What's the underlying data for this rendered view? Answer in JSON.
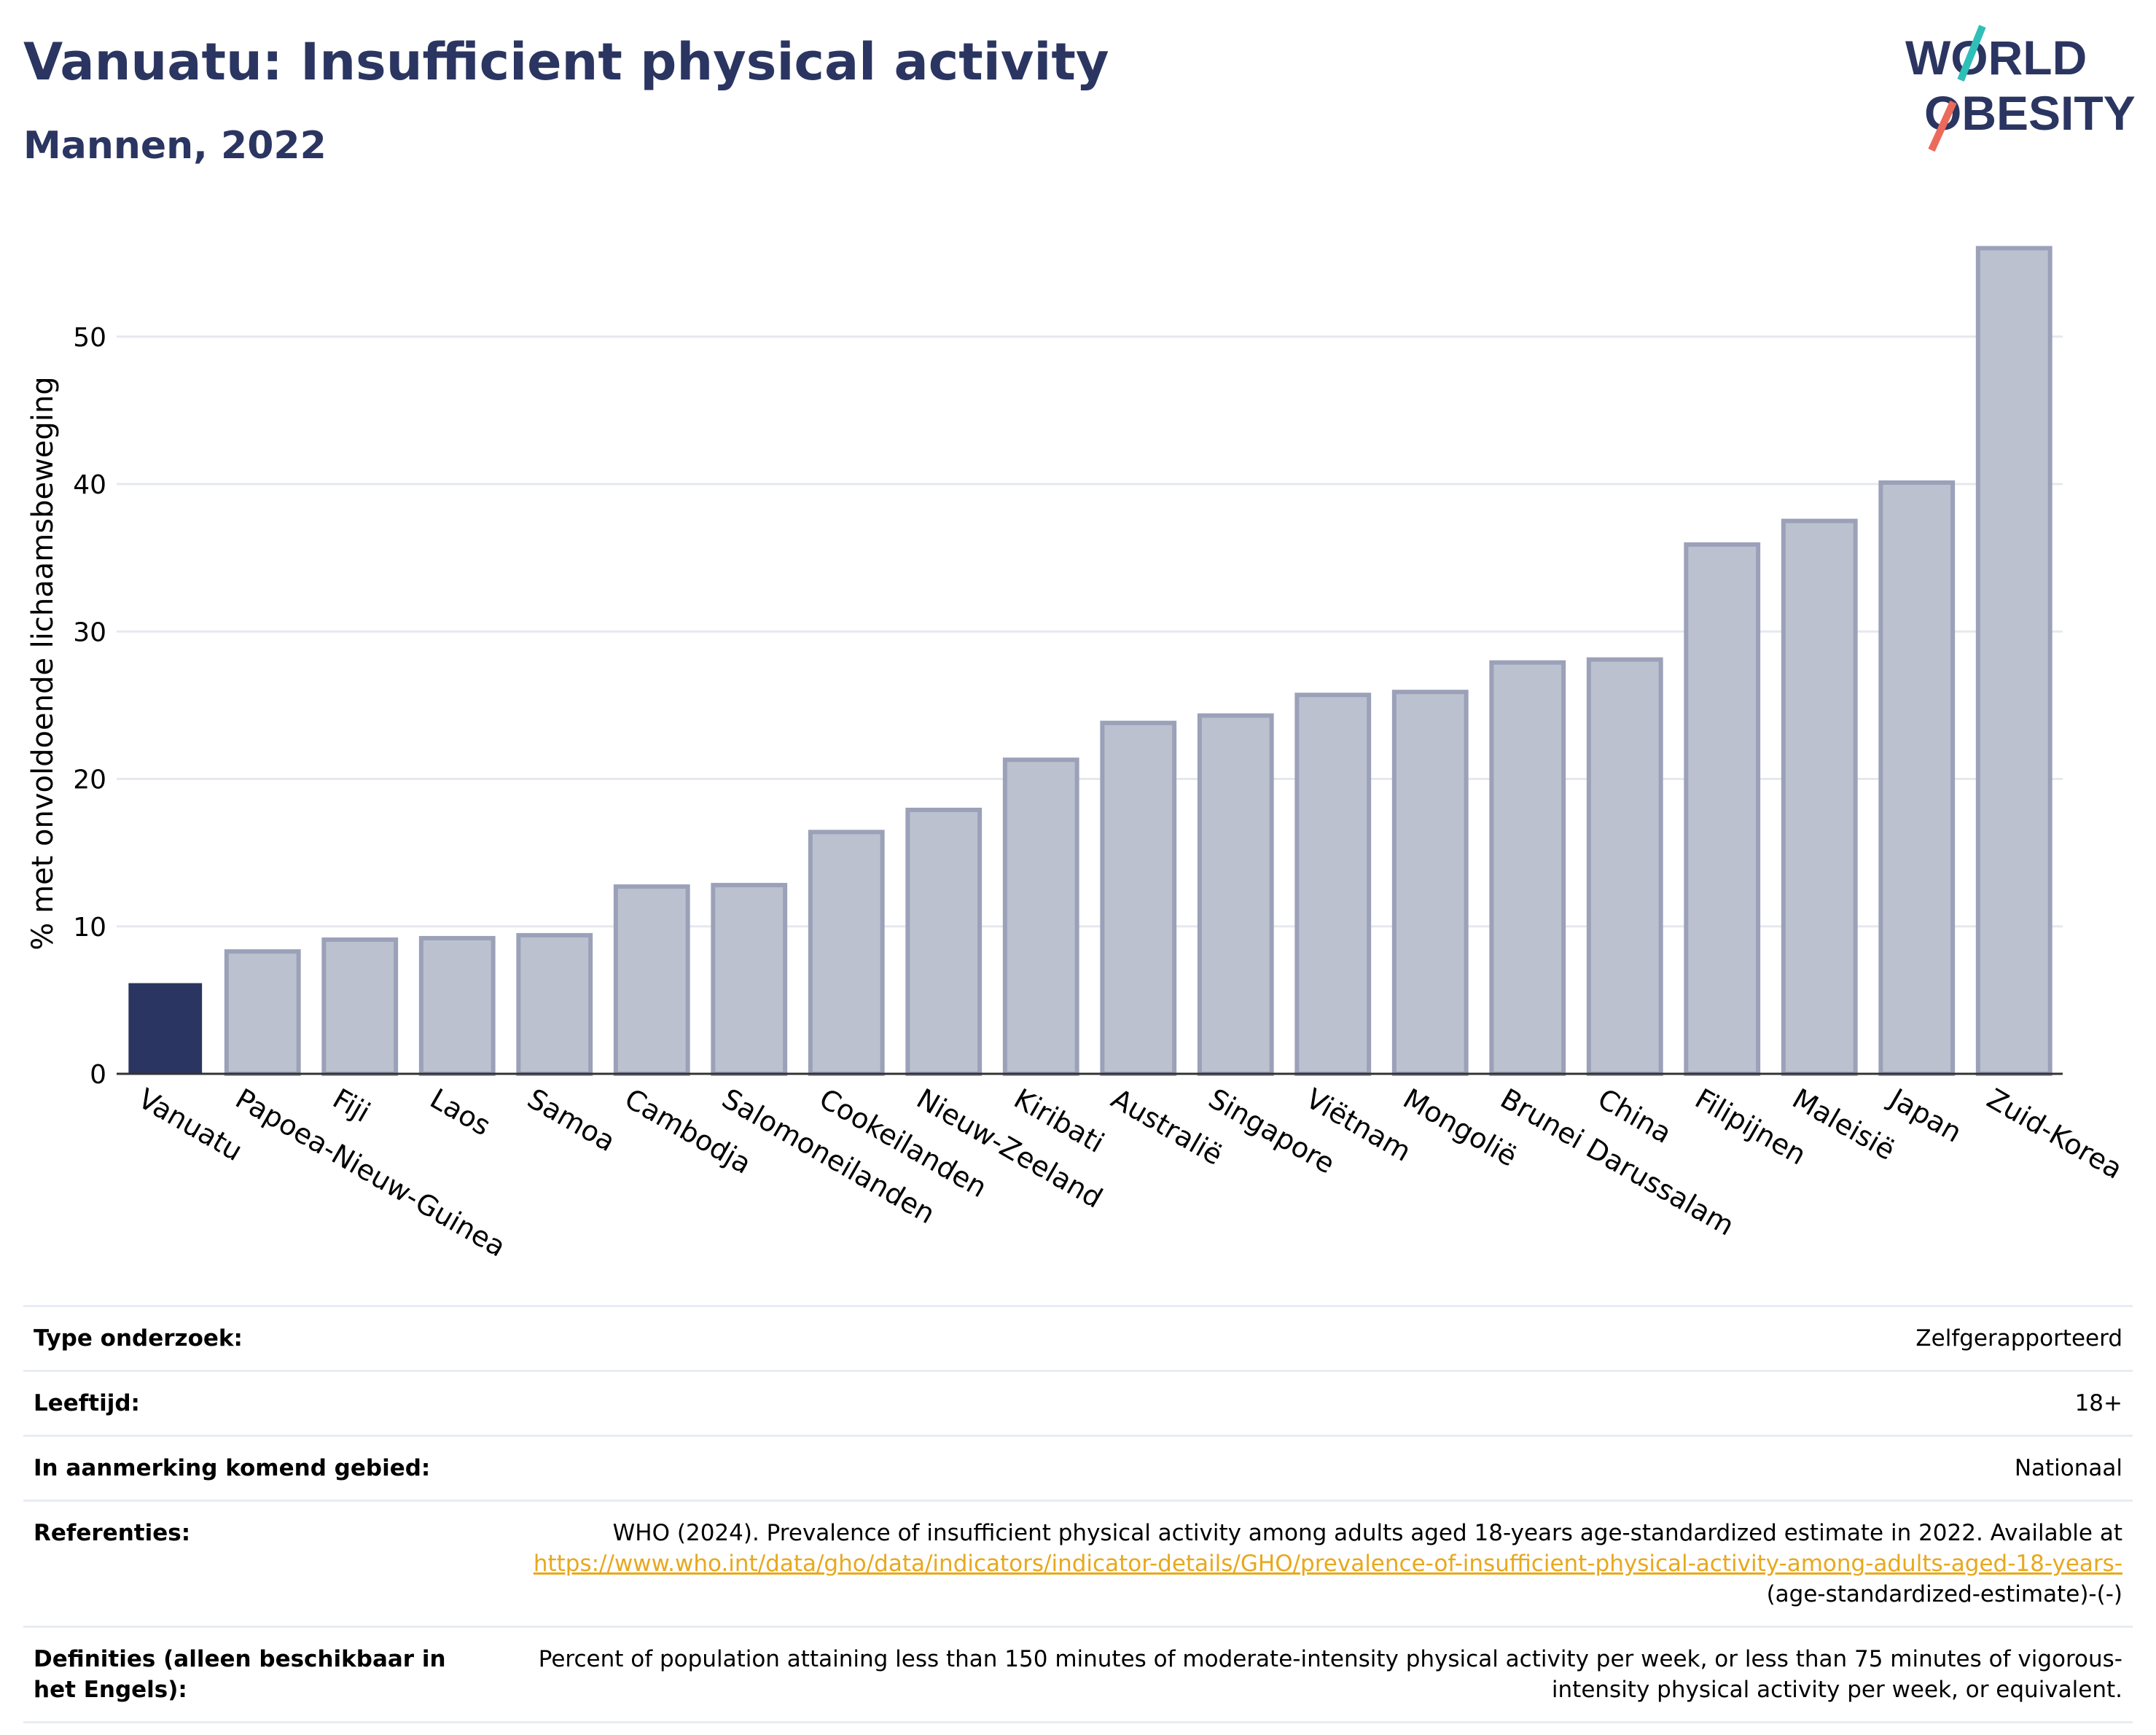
{
  "header": {
    "title": "Vanuatu: Insufficient physical activity",
    "subtitle": "Mannen, 2022"
  },
  "logo": {
    "line1": "WORLD",
    "line2": "OBESITY"
  },
  "colors": {
    "highlight": "#2b3561",
    "bar": "#bcc1d0",
    "bar_edge": "#9aa1b8",
    "axis": "#333333",
    "grid": "#e6e8ef"
  },
  "chart_data": {
    "type": "bar",
    "title": "",
    "xlabel": "",
    "ylabel": "% met onvoldoende lichaamsbeweging",
    "ylim": [
      0,
      58
    ],
    "yticks": [
      0,
      10,
      20,
      30,
      40,
      50
    ],
    "grid": true,
    "highlight": "Vanuatu",
    "categories": [
      "Vanuatu",
      "Papoea-Nieuw-Guinea",
      "Fiji",
      "Laos",
      "Samoa",
      "Cambodja",
      "Salomoneilanden",
      "Cookeilanden",
      "Nieuw-Zeeland",
      "Kiribati",
      "Australië",
      "Singapore",
      "Viëtnam",
      "Mongolië",
      "Brunei Darussalam",
      "China",
      "Filipijnen",
      "Maleisië",
      "Japan",
      "Zuid-Korea"
    ],
    "values": [
      6.1,
      8.3,
      9.1,
      9.2,
      9.4,
      12.7,
      12.8,
      16.4,
      17.9,
      21.3,
      23.8,
      24.3,
      25.7,
      25.9,
      27.9,
      28.1,
      35.9,
      37.5,
      40.1,
      56.0
    ]
  },
  "info": {
    "survey_type_label": "Type onderzoek:",
    "survey_type_value": "Zelfgerapporteerd",
    "age_label": "Leeftijd:",
    "age_value": "18+",
    "area_label": "In aanmerking komend gebied:",
    "area_value": "Nationaal",
    "references_label": "Referenties:",
    "references_text": "WHO (2024). Prevalence of insufficient physical activity among adults aged 18-years age-standardized estimate in 2022. Available at",
    "references_link": "https://www.who.int/data/gho/data/indicators/indicator-details/GHO/prevalence-of-insufficient-physical-activity-among-adults-aged-18-years-",
    "references_tail": "(age-standardized-estimate)-(-)",
    "definitions_label": "Definities (alleen beschikbaar in het Engels):",
    "definitions_value": "Percent of population attaining less than 150 minutes of moderate-intensity physical activity per week, or less than 75 minutes of vigorous-intensity physical activity per week, or equivalent."
  }
}
